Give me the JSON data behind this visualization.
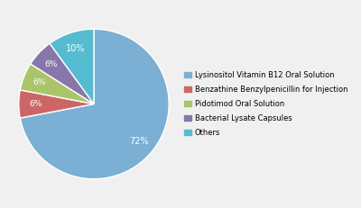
{
  "labels": [
    "Lysinositol Vitamin B12 Oral Solution",
    "Benzathine Benzylpenicillin for Injection",
    "Pidotimod Oral Solution",
    "Bacterial Lysate Capsules",
    "Others"
  ],
  "values": [
    72,
    6,
    6,
    6,
    10
  ],
  "colors": [
    "#7bafd4",
    "#cc6666",
    "#aac46a",
    "#8877aa",
    "#55bbd0"
  ],
  "background_color": "#f0f0f0",
  "startangle": 90,
  "legend_fontsize": 6.0,
  "pct_fontsize": 7.0,
  "pct_labels": [
    "72%",
    "6%",
    "6%",
    "6%",
    "10%"
  ]
}
